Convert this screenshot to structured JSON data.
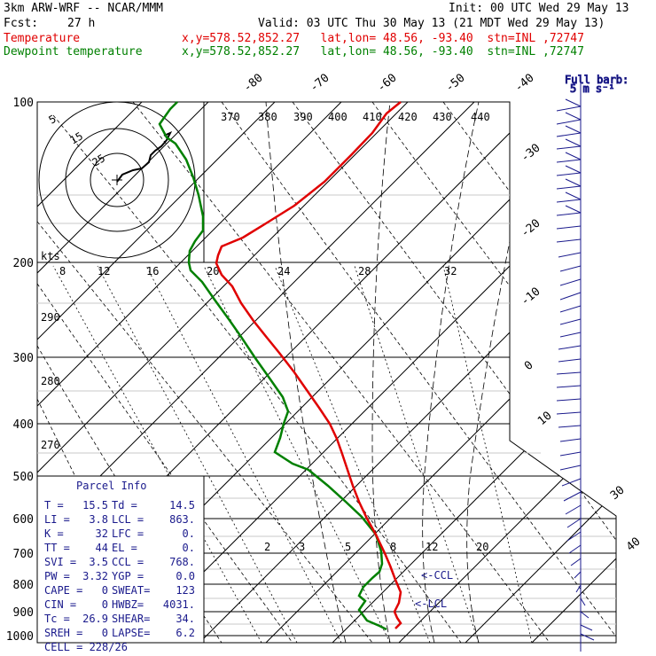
{
  "header": {
    "model": "3km ARW-WRF -- NCAR/MMM",
    "init": "Init: 00 UTC Wed 29 May 13",
    "fcst_label": "Fcst:",
    "fcst_value": "27 h",
    "valid": "Valid: 03 UTC Thu 30 May 13 (21 MDT Wed 29 May 13)",
    "temp_label": "Temperature",
    "dew_label": "Dewpoint temperature",
    "location": "x,y=578.52,852.27   lat,lon= 48.56, -93.40  stn=INL ,72747"
  },
  "barb_legend": {
    "line1": "Full barb:",
    "line2": "5 m s⁻¹"
  },
  "colors": {
    "temperature": "#e00000",
    "dewpoint": "#008000",
    "parcel_text": "#1a1a8c",
    "hodograph": "#000000"
  },
  "chart_data": {
    "type": "line",
    "pressure_levels": [
      "100",
      "200",
      "300",
      "400",
      "500",
      "600",
      "700",
      "800",
      "900",
      "1000"
    ],
    "hodo_rings": [
      "5",
      "15",
      "25"
    ],
    "hodo_units": "kts",
    "series": [
      {
        "name": "Temperature",
        "values": []
      },
      {
        "name": "Dewpoint temperature",
        "values": []
      }
    ],
    "temp_top_labels": [
      "-80",
      "-70",
      "-60",
      "-50",
      "-40"
    ],
    "temp_right_labels": [
      "-30",
      "-20",
      "-10",
      "0",
      "10",
      "30",
      "40"
    ],
    "theta_labels": [
      "370",
      "380",
      "390",
      "400",
      "410",
      "420",
      "430",
      "440"
    ],
    "theta_left_labels": [
      "290",
      "280",
      "270"
    ],
    "mixing_top_labels": [
      "8",
      "12",
      "16",
      "20",
      "24",
      "28",
      "32"
    ],
    "mixing_low_labels": [
      "2",
      "3",
      "5",
      "8",
      "12",
      "20"
    ],
    "ccl_label": "<-CCL",
    "lcl_label": "<-LCL"
  },
  "parcel_info": {
    "title": "Parcel Info",
    "rows": [
      [
        "T  =",
        "15.5",
        "Td =",
        "14.5"
      ],
      [
        "LI =",
        "3.8",
        "LCL =",
        "863."
      ],
      [
        "K  =",
        "32",
        "LFC =",
        "0."
      ],
      [
        "TT =",
        "44",
        "EL  =",
        "0."
      ],
      [
        "SVI =",
        "3.5",
        "CCL =",
        "768."
      ],
      [
        "PW =",
        "3.32",
        "YGP =",
        "0.0"
      ],
      [
        "CAPE =",
        "0",
        "SWEAT=",
        "123"
      ],
      [
        "CIN =",
        "0",
        "HWBZ=",
        "4031."
      ],
      [
        "Tc =",
        "26.9",
        "SHEAR=",
        "34."
      ],
      [
        "SREH =",
        "0",
        "LAPSE=",
        "6.2"
      ]
    ],
    "cell": "CELL = 228/26"
  }
}
